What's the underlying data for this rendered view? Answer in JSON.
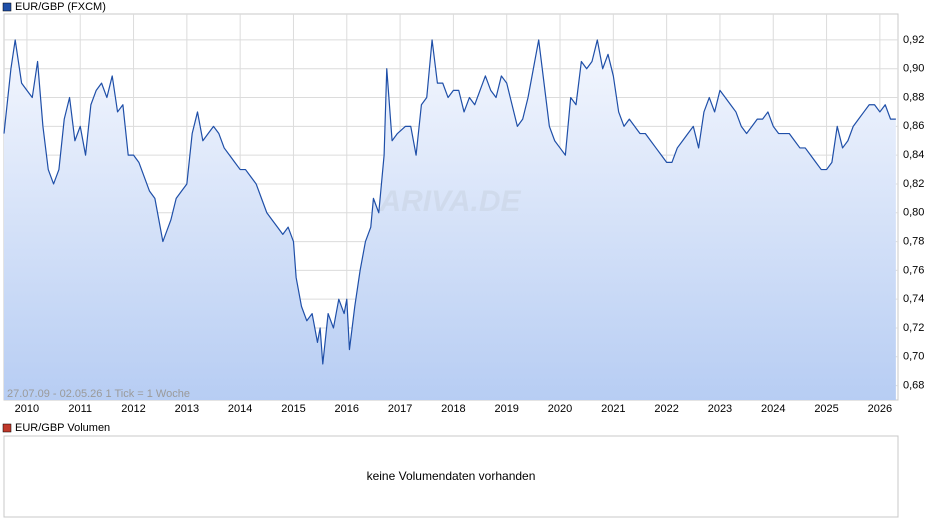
{
  "chart_data": {
    "type": "line",
    "legend": "EUR/GBP (FXCM)",
    "annotation": "27.07.09 - 02.05.26   1 Tick = 1 Woche",
    "watermark": "ARIVA.DE",
    "x": [
      2009.57,
      2009.7,
      2009.78,
      2009.9,
      2010.0,
      2010.1,
      2010.2,
      2010.3,
      2010.4,
      2010.5,
      2010.6,
      2010.7,
      2010.8,
      2010.9,
      2011.0,
      2011.1,
      2011.2,
      2011.3,
      2011.4,
      2011.5,
      2011.6,
      2011.7,
      2011.8,
      2011.9,
      2012.0,
      2012.1,
      2012.3,
      2012.4,
      2012.5,
      2012.55,
      2012.7,
      2012.8,
      2012.9,
      2013.0,
      2013.1,
      2013.2,
      2013.3,
      2013.4,
      2013.5,
      2013.6,
      2013.7,
      2013.8,
      2013.9,
      2014.0,
      2014.1,
      2014.2,
      2014.3,
      2014.4,
      2014.5,
      2014.6,
      2014.7,
      2014.8,
      2014.9,
      2015.0,
      2015.05,
      2015.15,
      2015.25,
      2015.35,
      2015.45,
      2015.5,
      2015.55,
      2015.65,
      2015.75,
      2015.85,
      2015.95,
      2016.0,
      2016.05,
      2016.15,
      2016.25,
      2016.35,
      2016.45,
      2016.5,
      2016.6,
      2016.7,
      2016.75,
      2016.85,
      2016.95,
      2017.1,
      2017.2,
      2017.3,
      2017.4,
      2017.5,
      2017.6,
      2017.7,
      2017.8,
      2017.9,
      2018.0,
      2018.1,
      2018.2,
      2018.3,
      2018.4,
      2018.5,
      2018.6,
      2018.7,
      2018.8,
      2018.9,
      2019.0,
      2019.1,
      2019.2,
      2019.3,
      2019.4,
      2019.5,
      2019.6,
      2019.7,
      2019.8,
      2019.9,
      2020.0,
      2020.1,
      2020.2,
      2020.3,
      2020.4,
      2020.5,
      2020.6,
      2020.7,
      2020.8,
      2020.9,
      2021.0,
      2021.1,
      2021.2,
      2021.3,
      2021.5,
      2021.6,
      2021.7,
      2021.8,
      2021.9,
      2022.0,
      2022.1,
      2022.2,
      2022.3,
      2022.4,
      2022.5,
      2022.6,
      2022.7,
      2022.8,
      2022.9,
      2023.0,
      2023.1,
      2023.2,
      2023.3,
      2023.4,
      2023.5,
      2023.6,
      2023.7,
      2023.8,
      2023.9,
      2024.0,
      2024.1,
      2024.2,
      2024.3,
      2024.4,
      2024.5,
      2024.6,
      2024.7,
      2024.8,
      2024.9,
      2025.0,
      2025.1,
      2025.2,
      2025.3,
      2025.4,
      2025.5,
      2025.6,
      2025.7,
      2025.8,
      2025.9,
      2026.0,
      2026.1,
      2026.2,
      2026.3
    ],
    "series": [
      {
        "name": "EUR/GBP (FXCM)",
        "color": "#1f4fa8",
        "values": [
          0.855,
          0.9,
          0.92,
          0.89,
          0.885,
          0.88,
          0.905,
          0.86,
          0.83,
          0.82,
          0.83,
          0.865,
          0.88,
          0.85,
          0.86,
          0.84,
          0.875,
          0.885,
          0.89,
          0.88,
          0.895,
          0.87,
          0.875,
          0.84,
          0.84,
          0.835,
          0.815,
          0.81,
          0.79,
          0.78,
          0.795,
          0.81,
          0.815,
          0.82,
          0.855,
          0.87,
          0.85,
          0.855,
          0.86,
          0.855,
          0.845,
          0.84,
          0.835,
          0.83,
          0.83,
          0.825,
          0.82,
          0.81,
          0.8,
          0.795,
          0.79,
          0.785,
          0.79,
          0.78,
          0.755,
          0.735,
          0.725,
          0.73,
          0.71,
          0.72,
          0.695,
          0.73,
          0.72,
          0.74,
          0.73,
          0.74,
          0.705,
          0.735,
          0.76,
          0.78,
          0.79,
          0.81,
          0.8,
          0.84,
          0.9,
          0.85,
          0.855,
          0.86,
          0.86,
          0.84,
          0.875,
          0.88,
          0.92,
          0.89,
          0.89,
          0.88,
          0.885,
          0.885,
          0.87,
          0.88,
          0.875,
          0.885,
          0.895,
          0.885,
          0.88,
          0.895,
          0.89,
          0.875,
          0.86,
          0.865,
          0.88,
          0.9,
          0.92,
          0.89,
          0.86,
          0.85,
          0.845,
          0.84,
          0.88,
          0.875,
          0.905,
          0.9,
          0.905,
          0.92,
          0.9,
          0.91,
          0.895,
          0.87,
          0.86,
          0.865,
          0.855,
          0.855,
          0.85,
          0.845,
          0.84,
          0.835,
          0.835,
          0.845,
          0.85,
          0.855,
          0.86,
          0.845,
          0.87,
          0.88,
          0.87,
          0.885,
          0.88,
          0.875,
          0.87,
          0.86,
          0.855,
          0.86,
          0.865,
          0.865,
          0.87,
          0.86,
          0.855,
          0.855,
          0.855,
          0.85,
          0.845,
          0.845,
          0.84,
          0.835,
          0.83,
          0.83,
          0.835,
          0.86,
          0.845,
          0.85,
          0.86,
          0.865,
          0.87,
          0.875,
          0.875,
          0.87,
          0.875,
          0.865,
          0.865
        ]
      }
    ],
    "xlim": [
      2009.57,
      2026.34
    ],
    "xticks": [
      2010,
      2011,
      2012,
      2013,
      2014,
      2015,
      2016,
      2017,
      2018,
      2019,
      2020,
      2021,
      2022,
      2023,
      2024,
      2025,
      2026
    ],
    "ylim": [
      0.67,
      0.938
    ],
    "yticks": [
      {
        "value": 0.68,
        "label": "0,68"
      },
      {
        "value": 0.7,
        "label": "0,70"
      },
      {
        "value": 0.72,
        "label": "0,72"
      },
      {
        "value": 0.74,
        "label": "0,74"
      },
      {
        "value": 0.76,
        "label": "0,76"
      },
      {
        "value": 0.78,
        "label": "0,78"
      },
      {
        "value": 0.8,
        "label": "0,80"
      },
      {
        "value": 0.82,
        "label": "0,82"
      },
      {
        "value": 0.84,
        "label": "0,84"
      },
      {
        "value": 0.86,
        "label": "0,86"
      },
      {
        "value": 0.88,
        "label": "0,88"
      },
      {
        "value": 0.9,
        "label": "0,90"
      },
      {
        "value": 0.92,
        "label": "0,92"
      }
    ],
    "grid": true,
    "volume_panel": {
      "legend": "EUR/GBP Volumen",
      "color": "#c0392b",
      "message": "keine Volumendaten vorhanden"
    }
  }
}
